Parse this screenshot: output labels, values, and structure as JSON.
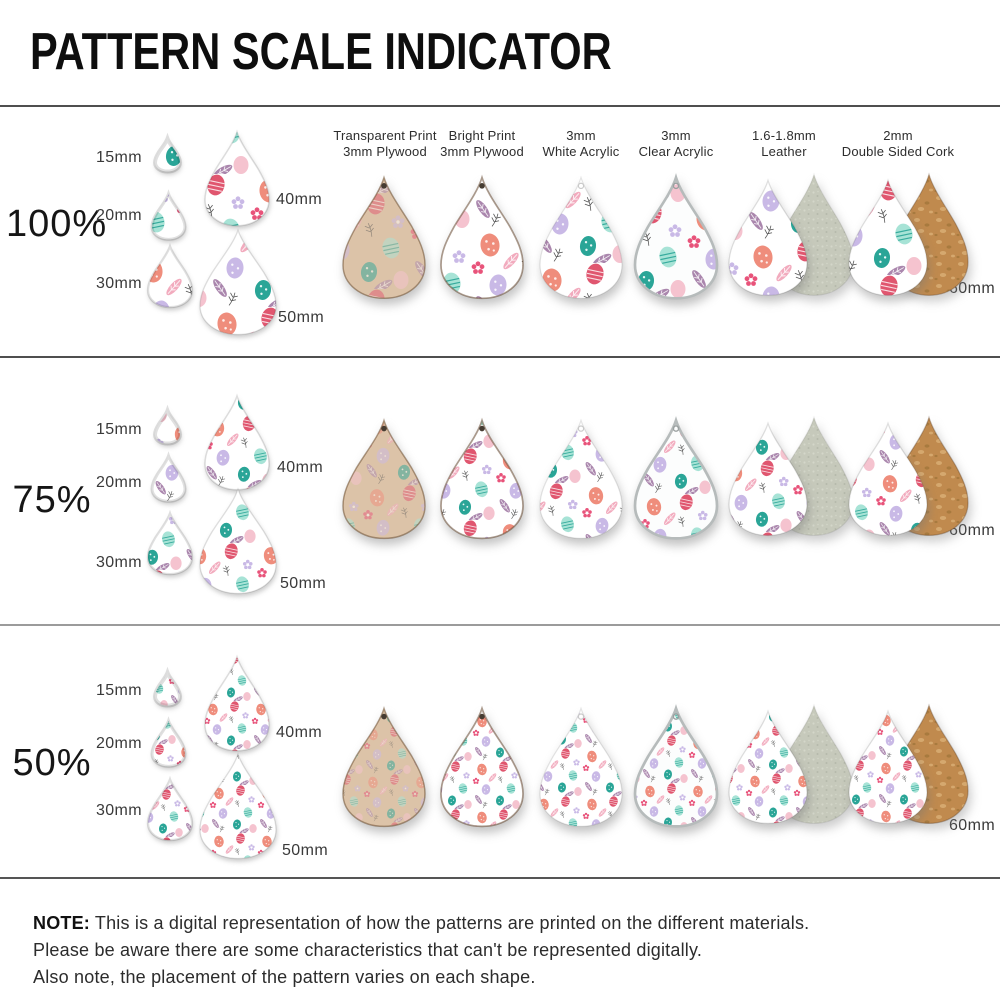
{
  "title": "PATTERN SCALE INDICATOR",
  "materials": [
    {
      "line1": "Transparent Print",
      "line2": "3mm Plywood"
    },
    {
      "line1": "Bright Print",
      "line2": "3mm Plywood"
    },
    {
      "line1": "3mm",
      "line2": "White Acrylic"
    },
    {
      "line1": "3mm",
      "line2": "Clear Acrylic"
    },
    {
      "line1": "1.6-1.8mm",
      "line2": "Leather"
    },
    {
      "line1": "2mm",
      "line2": "Double Sided Cork"
    }
  ],
  "rows": [
    {
      "scale": "100%",
      "size_15": "15mm",
      "size_20": "20mm",
      "size_30": "30mm",
      "size_40": "40mm",
      "size_50": "50mm",
      "size_60": "60mm"
    },
    {
      "scale": "75%",
      "size_15": "15mm",
      "size_20": "20mm",
      "size_30": "30mm",
      "size_40": "40mm",
      "size_50": "50mm",
      "size_60": "60mm"
    },
    {
      "scale": "50%",
      "size_15": "15mm",
      "size_20": "20mm",
      "size_30": "30mm",
      "size_40": "40mm",
      "size_50": "50mm",
      "size_60": "60mm"
    }
  ],
  "note": {
    "label": "NOTE:",
    "line1": "This is a digital representation of how the patterns are printed on the different materials.",
    "line2": "Please be aware there are some characteristics that can't be represented digitally.",
    "line3": "Also note, the placement of the pattern varies on each shape."
  },
  "colors": {
    "wood": "#dcc3a8",
    "wood_edge": "#8a6a48",
    "cork": "#c08a4e",
    "cork_light": "#d5a86e",
    "cork_dark": "#a87a3e",
    "suede": "#c6c9bb",
    "suede_light": "#d4d7ca",
    "suede_dark": "#b5b9ab",
    "egg_coral": "#ef8d7c",
    "egg_rose": "#e0566f",
    "egg_mint": "#a7e3d6",
    "egg_teal": "#2aa597",
    "egg_lilac": "#c9b9e6",
    "egg_pink": "#f5c3cf",
    "feather_pink": "#f2abbe",
    "feather_mauve": "#aa86ad",
    "flower_rose": "#e8537a",
    "flower_lilac": "#c9b9e6",
    "sprig": "#555555",
    "separator_dark": "#4f4f4f",
    "separator_light": "#9b9b9b"
  }
}
